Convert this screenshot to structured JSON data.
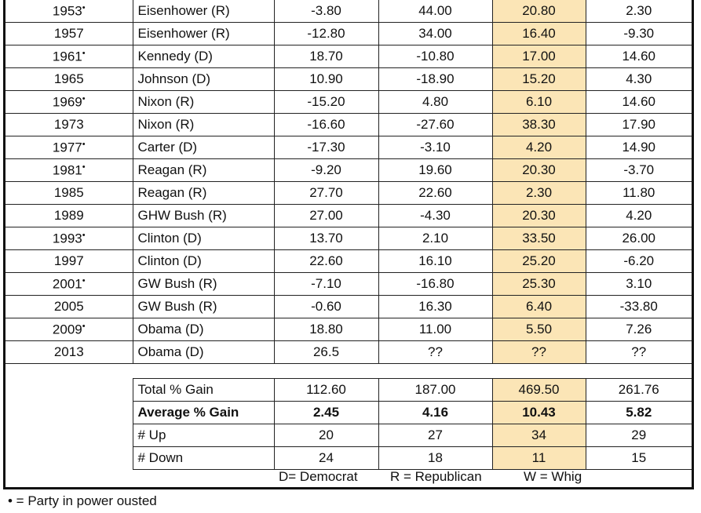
{
  "rows": [
    {
      "year": "1953",
      "ousted": true,
      "president": "Eisenhower (R)",
      "c1": "-3.80",
      "c2": "44.00",
      "c3": "20.80",
      "c4": "2.30"
    },
    {
      "year": "1957",
      "ousted": false,
      "president": "Eisenhower (R)",
      "c1": "-12.80",
      "c2": "34.00",
      "c3": "16.40",
      "c4": "-9.30"
    },
    {
      "year": "1961",
      "ousted": true,
      "president": "Kennedy (D)",
      "c1": "18.70",
      "c2": "-10.80",
      "c3": "17.00",
      "c4": "14.60"
    },
    {
      "year": "1965",
      "ousted": false,
      "president": "Johnson (D)",
      "c1": "10.90",
      "c2": "-18.90",
      "c3": "15.20",
      "c4": "4.30"
    },
    {
      "year": "1969",
      "ousted": true,
      "president": "Nixon (R)",
      "c1": "-15.20",
      "c2": "4.80",
      "c3": "6.10",
      "c4": "14.60"
    },
    {
      "year": "1973",
      "ousted": false,
      "president": "Nixon (R)",
      "c1": "-16.60",
      "c2": "-27.60",
      "c3": "38.30",
      "c4": "17.90"
    },
    {
      "year": "1977",
      "ousted": true,
      "president": "Carter (D)",
      "c1": "-17.30",
      "c2": "-3.10",
      "c3": "4.20",
      "c4": "14.90"
    },
    {
      "year": "1981",
      "ousted": true,
      "president": "Reagan (R)",
      "c1": "-9.20",
      "c2": "19.60",
      "c3": "20.30",
      "c4": "-3.70"
    },
    {
      "year": "1985",
      "ousted": false,
      "president": "Reagan (R)",
      "c1": "27.70",
      "c2": "22.60",
      "c3": "2.30",
      "c4": "11.80"
    },
    {
      "year": "1989",
      "ousted": false,
      "president": "GHW Bush (R)",
      "c1": "27.00",
      "c2": "-4.30",
      "c3": "20.30",
      "c4": "4.20"
    },
    {
      "year": "1993",
      "ousted": true,
      "president": "Clinton (D)",
      "c1": "13.70",
      "c2": "2.10",
      "c3": "33.50",
      "c4": "26.00"
    },
    {
      "year": "1997",
      "ousted": false,
      "president": "Clinton (D)",
      "c1": "22.60",
      "c2": "16.10",
      "c3": "25.20",
      "c4": "-6.20"
    },
    {
      "year": "2001",
      "ousted": true,
      "president": "GW Bush (R)",
      "c1": "-7.10",
      "c2": "-16.80",
      "c3": "25.30",
      "c4": "3.10"
    },
    {
      "year": "2005",
      "ousted": false,
      "president": "GW Bush (R)",
      "c1": "-0.60",
      "c2": "16.30",
      "c3": "6.40",
      "c4": "-33.80"
    },
    {
      "year": "2009",
      "ousted": true,
      "president": "Obama (D)",
      "c1": "18.80",
      "c2": "11.00",
      "c3": "5.50",
      "c4": "7.26"
    },
    {
      "year": "2013",
      "ousted": false,
      "president": "Obama (D)",
      "c1": "26.5",
      "c2": "??",
      "c3": "??",
      "c4": "??"
    }
  ],
  "summary": [
    {
      "label": "Total % Gain",
      "bold": false,
      "c1": "112.60",
      "c2": "187.00",
      "c3": "469.50",
      "c4": "261.76"
    },
    {
      "label": "Average % Gain",
      "bold": true,
      "c1": "2.45",
      "c2": "4.16",
      "c3": "10.43",
      "c4": "5.82"
    },
    {
      "label": "# Up",
      "bold": false,
      "c1": "20",
      "c2": "27",
      "c3": "34",
      "c4": "29"
    },
    {
      "label": "# Down",
      "bold": false,
      "c1": "24",
      "c2": "18",
      "c3": "11",
      "c4": "15"
    }
  ],
  "legend": {
    "democrat": "D= Democrat",
    "republican": "R = Republican",
    "whig": "W = Whig"
  },
  "ousted_marker": "•",
  "footnote": "• = Party in power ousted",
  "colors": {
    "highlight": "#fbe5b6",
    "border": "#222222"
  }
}
